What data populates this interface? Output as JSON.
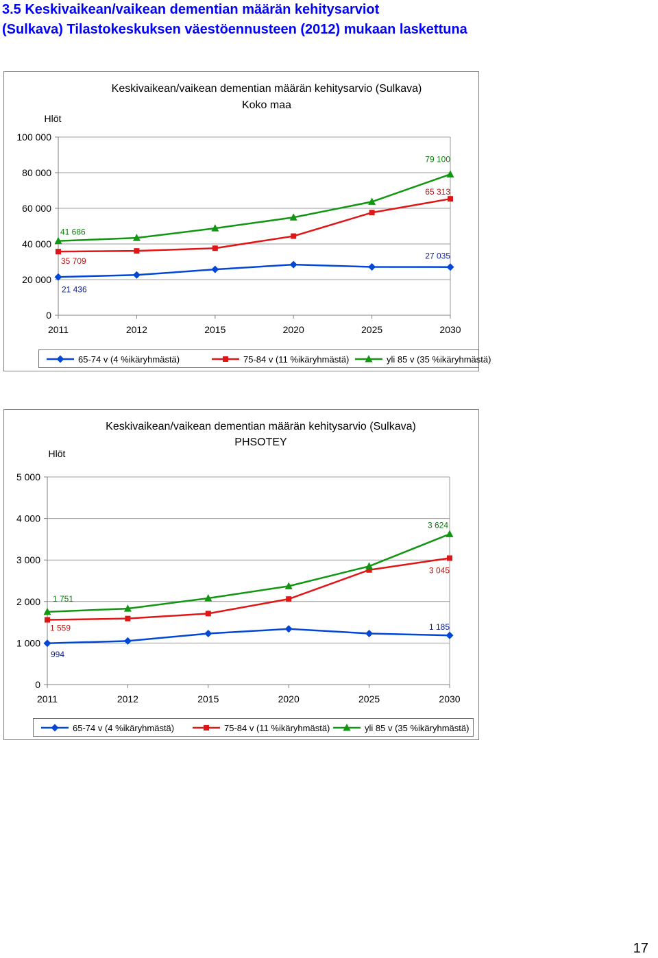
{
  "document": {
    "heading_line1": "3.5 Keskivaikean/vaikean dementian määrän kehitysarviot",
    "heading_line2": "(Sulkava) Tilastokeskuksen väestöennusteen (2012) mukaan laskettuna",
    "page_number": "17"
  },
  "colors": {
    "series_65_74": "#0047D6",
    "series_75_84": "#E01515",
    "series_85": "#109610",
    "label_65_74": "#0A1F96",
    "label_75_84": "#C41414",
    "label_85": "#0A7A0A"
  },
  "chart_data": [
    {
      "type": "line",
      "title": "Keskivaikean/vaikean dementian määrän kehitysarvio (Sulkava)",
      "subtitle": "Koko maa",
      "ylabel": "Hlöt",
      "xlabel": "",
      "categories": [
        "2011",
        "2012",
        "2015",
        "2020",
        "2025",
        "2030"
      ],
      "ylim": [
        0,
        100000
      ],
      "yticks": [
        0,
        20000,
        40000,
        60000,
        80000,
        100000
      ],
      "ytick_labels": [
        "0",
        "20 000",
        "40 000",
        "60 000",
        "80 000",
        "100 000"
      ],
      "grid": "horizontal",
      "legend": "bottom",
      "series": [
        {
          "name": "65-74 v (4 %ikäryhmästä)",
          "marker": "diamond",
          "values": [
            21436,
            22600,
            25700,
            28400,
            27100,
            27035
          ]
        },
        {
          "name": "75-84 v (11 %ikäryhmästä)",
          "marker": "square",
          "values": [
            35709,
            36100,
            37600,
            44400,
            57600,
            65313
          ]
        },
        {
          "name": "yli 85 v (35 %ikäryhmästä)",
          "marker": "triangle",
          "values": [
            41686,
            43400,
            48800,
            54900,
            63700,
            79100
          ]
        }
      ],
      "data_labels": [
        {
          "series": 0,
          "index": 0,
          "text": "21 436"
        },
        {
          "series": 0,
          "index": 5,
          "text": "27 035"
        },
        {
          "series": 1,
          "index": 0,
          "text": "35 709"
        },
        {
          "series": 1,
          "index": 5,
          "text": "65 313"
        },
        {
          "series": 2,
          "index": 0,
          "text": "41 686"
        },
        {
          "series": 2,
          "index": 5,
          "text": "79 100"
        }
      ]
    },
    {
      "type": "line",
      "title": "Keskivaikean/vaikean dementian määrän kehitysarvio (Sulkava)",
      "subtitle": "PHSOTEY",
      "ylabel": "Hlöt",
      "xlabel": "",
      "categories": [
        "2011",
        "2012",
        "2015",
        "2020",
        "2025",
        "2030"
      ],
      "ylim": [
        0,
        5000
      ],
      "yticks": [
        0,
        1000,
        2000,
        3000,
        4000,
        5000
      ],
      "ytick_labels": [
        "0",
        "1 000",
        "2 000",
        "3 000",
        "4 000",
        "5 000"
      ],
      "grid": "horizontal",
      "legend": "bottom",
      "series": [
        {
          "name": "65-74 v (4 %ikäryhmästä)",
          "marker": "diamond",
          "values": [
            994,
            1050,
            1230,
            1340,
            1230,
            1185
          ]
        },
        {
          "name": "75-84 v (11 %ikäryhmästä)",
          "marker": "square",
          "values": [
            1559,
            1590,
            1710,
            2060,
            2760,
            3045
          ]
        },
        {
          "name": "yli 85 v (35 %ikäryhmästä)",
          "marker": "triangle",
          "values": [
            1751,
            1830,
            2080,
            2370,
            2850,
            3624
          ]
        }
      ],
      "data_labels": [
        {
          "series": 0,
          "index": 0,
          "text": "994"
        },
        {
          "series": 0,
          "index": 5,
          "text": "1 185"
        },
        {
          "series": 1,
          "index": 0,
          "text": "1 559"
        },
        {
          "series": 1,
          "index": 5,
          "text": "3 045"
        },
        {
          "series": 2,
          "index": 0,
          "text": "1 751"
        },
        {
          "series": 2,
          "index": 5,
          "text": "3 624"
        }
      ]
    }
  ]
}
